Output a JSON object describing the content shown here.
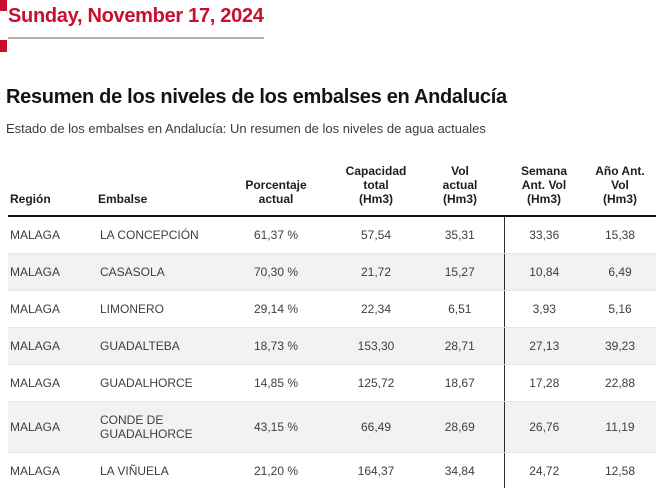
{
  "article": {
    "date_heading": "Sunday, November 17, 2024",
    "title": "Resumen de los niveles de los embalses en Andalucía",
    "subtitle": "Estado de los embalses en Andalucía: Un resumen de los niveles de agua actuales"
  },
  "table": {
    "headers": {
      "region": "Región",
      "embalse": "Embalse",
      "pct": "Porcentaje\nactual",
      "cap": "Capacidad\ntotal\n(Hm3)",
      "vol": "Vol\nactual\n(Hm3)",
      "sem": "Semana\nAnt. Vol\n(Hm3)",
      "ano": "Año Ant.\nVol\n(Hm3)"
    },
    "rows": [
      {
        "region": "MALAGA",
        "embalse": "LA CONCEPCIÓN",
        "pct": "61,37 %",
        "cap": "57,54",
        "vol": "35,31",
        "sem": "33,36",
        "ano": "15,38"
      },
      {
        "region": "MALAGA",
        "embalse": "CASASOLA",
        "pct": "70,30 %",
        "cap": "21,72",
        "vol": "15,27",
        "sem": "10,84",
        "ano": "6,49"
      },
      {
        "region": "MALAGA",
        "embalse": "LIMONERO",
        "pct": "29,14 %",
        "cap": "22,34",
        "vol": "6,51",
        "sem": "3,93",
        "ano": "5,16"
      },
      {
        "region": "MALAGA",
        "embalse": "GUADALTEBA",
        "pct": "18,73 %",
        "cap": "153,30",
        "vol": "28,71",
        "sem": "27,13",
        "ano": "39,23"
      },
      {
        "region": "MALAGA",
        "embalse": "GUADALHORCE",
        "pct": "14,85 %",
        "cap": "125,72",
        "vol": "18,67",
        "sem": "17,28",
        "ano": "22,88"
      },
      {
        "region": "MALAGA",
        "embalse": "CONDE DE GUADALHORCE",
        "pct": "43,15 %",
        "cap": "66,49",
        "vol": "28,69",
        "sem": "26,76",
        "ano": "11,19"
      },
      {
        "region": "MALAGA",
        "embalse": "LA VIÑUELA",
        "pct": "21,20 %",
        "cap": "164,37",
        "vol": "34,84",
        "sem": "24,72",
        "ano": "12,58"
      }
    ]
  },
  "colors": {
    "accent_red": "#C8102E",
    "alt_row_bg": "#F2F2F2",
    "header_border": "#111111",
    "column_divider": "#2B2B2B",
    "date_underline": "#B3B3B3"
  }
}
